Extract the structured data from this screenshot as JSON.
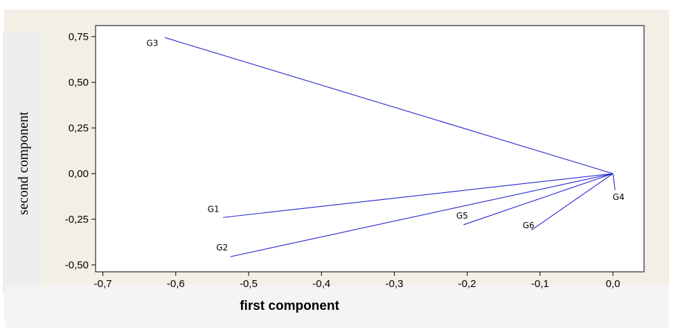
{
  "chart_data": {
    "type": "scatter",
    "xlabel": "first component",
    "ylabel": "second component",
    "xlim": [
      -0.7,
      0.03
    ],
    "ylim": [
      -0.5,
      0.78
    ],
    "x_ticks": [
      "-0,7",
      "-0,6",
      "-0,5",
      "-0,4",
      "-0,3",
      "-0,2",
      "-0,1",
      "0,0"
    ],
    "x_tick_values": [
      -0.7,
      -0.6,
      -0.5,
      -0.4,
      -0.3,
      -0.2,
      -0.1,
      0.0
    ],
    "y_ticks": [
      "0,75",
      "0,50",
      "0,25",
      "0,00",
      "-0,25",
      "-0,50"
    ],
    "y_tick_values": [
      0.75,
      0.5,
      0.25,
      0.0,
      -0.25,
      -0.5
    ],
    "grid": false,
    "origin": [
      0.0,
      0.0
    ],
    "points": [
      {
        "label": "G1",
        "x": -0.535,
        "y": -0.24
      },
      {
        "label": "G2",
        "x": -0.525,
        "y": -0.455
      },
      {
        "label": "G3",
        "x": -0.615,
        "y": 0.745
      },
      {
        "label": "G4",
        "x": 0.003,
        "y": -0.09
      },
      {
        "label": "G5",
        "x": -0.205,
        "y": -0.28
      },
      {
        "label": "G6",
        "x": -0.112,
        "y": -0.31
      }
    ],
    "line_color": "#2222cc",
    "plot_background": "#ffffff",
    "outer_background": "#f3efe6"
  }
}
